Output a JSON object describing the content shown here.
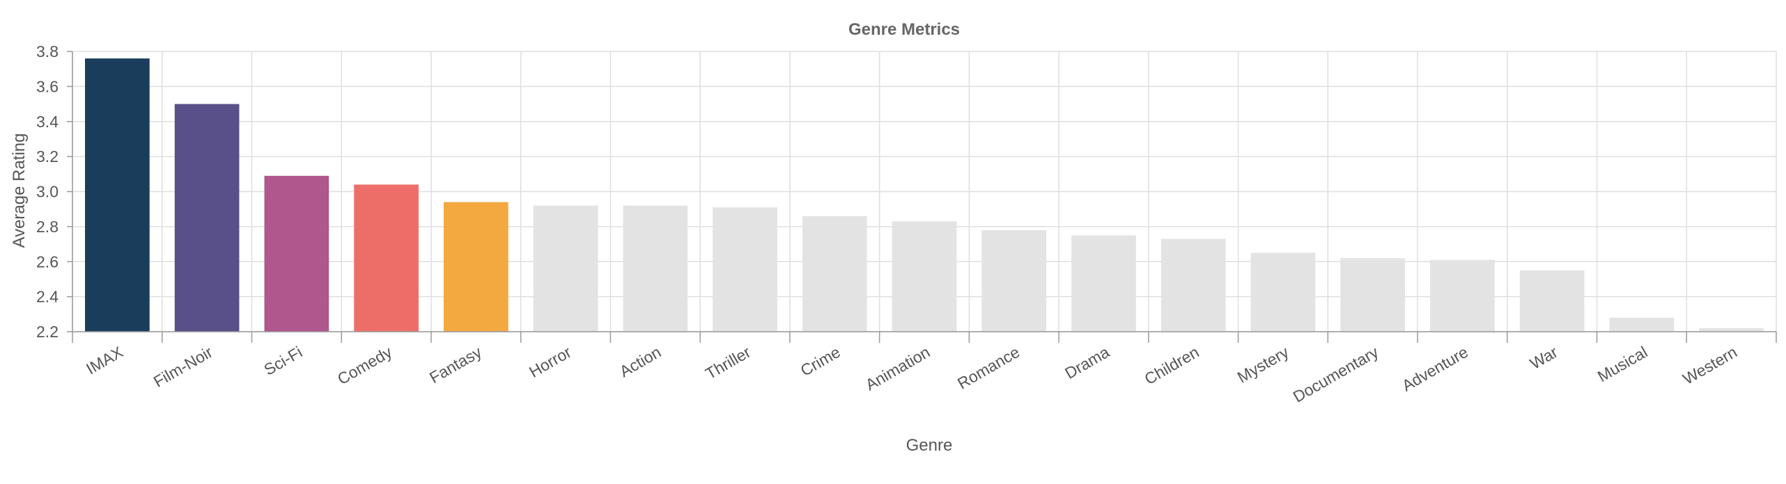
{
  "chart_data": {
    "type": "bar",
    "title": "Genre Metrics",
    "xlabel": "Genre",
    "ylabel": "Average Rating",
    "categories": [
      "IMAX",
      "Film-Noir",
      "Sci-Fi",
      "Comedy",
      "Fantasy",
      "Horror",
      "Action",
      "Thriller",
      "Crime",
      "Animation",
      "Romance",
      "Drama",
      "Children",
      "Mystery",
      "Documentary",
      "Adventure",
      "War",
      "Musical",
      "Western"
    ],
    "values": [
      3.76,
      3.5,
      3.09,
      3.04,
      2.94,
      2.92,
      2.92,
      2.91,
      2.86,
      2.83,
      2.78,
      2.75,
      2.73,
      2.65,
      2.62,
      2.61,
      2.55,
      2.28,
      2.22
    ],
    "colors": [
      "#1a3d5c",
      "#5a5089",
      "#b0578d",
      "#ed6e69",
      "#f3a93f",
      "#e3e3e3",
      "#e3e3e3",
      "#e3e3e3",
      "#e3e3e3",
      "#e3e3e3",
      "#e3e3e3",
      "#e3e3e3",
      "#e3e3e3",
      "#e3e3e3",
      "#e3e3e3",
      "#e3e3e3",
      "#e3e3e3",
      "#e3e3e3",
      "#e3e3e3"
    ],
    "ylim": [
      2.2,
      3.8
    ],
    "yticks": [
      "2.2",
      "2.4",
      "2.6",
      "2.8",
      "3.0",
      "3.2",
      "3.4",
      "3.6",
      "3.8"
    ],
    "grid": true,
    "legend": "none"
  }
}
